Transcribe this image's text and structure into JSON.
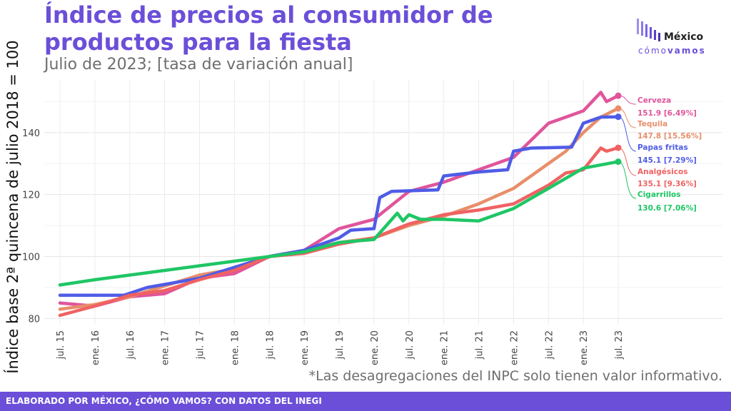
{
  "header": {
    "title": "Índice de precios al consumidor de productos para la fiesta",
    "subtitle": "Julio de 2023; [tasa de variación anual]"
  },
  "logo": {
    "word1": "México",
    "word2a": "cómo",
    "word2b": "vamos"
  },
  "footnote": "*Las desagregaciones del INPC solo tienen valor informativo.",
  "footer": "ELABORADO POR MÉXICO, ¿CÓMO VAMOS? CON DATOS DEL INEGI",
  "colors": {
    "brand": "#6b4fd8",
    "cerveza": "#e0559b",
    "tequila": "#e88e6a",
    "papas": "#4f5ce6",
    "analgesicos": "#f06262",
    "cigarrillos": "#1fc665"
  },
  "chart_data": {
    "type": "line",
    "title": "Índice de precios al consumidor de productos para la fiesta",
    "subtitle": "Julio de 2023; [tasa de variación anual]",
    "ylabel": "Índice base 2ª quincena de julio 2018 = 100",
    "xlabel": "",
    "ylim": [
      78,
      157
    ],
    "yticks": [
      80,
      100,
      120,
      140
    ],
    "x_tick_labels": [
      "jul. 15",
      "ene. 16",
      "jul. 16",
      "ene. 17",
      "jul. 17",
      "ene. 18",
      "jul. 18",
      "ene. 19",
      "jul. 19",
      "ene. 20",
      "jul. 20",
      "ene. 21",
      "jul. 21",
      "ene. 22",
      "jul. 22",
      "ene. 23",
      "jul. 23"
    ],
    "grid": true,
    "series": [
      {
        "name": "Cerveza",
        "key": "cerveza",
        "end_label": "151.9 [6.49%]",
        "points": [
          [
            "2015-07",
            85
          ],
          [
            "2016-01",
            84
          ],
          [
            "2016-07",
            87
          ],
          [
            "2017-01",
            88
          ],
          [
            "2017-07",
            93
          ],
          [
            "2018-01",
            94.5
          ],
          [
            "2018-07",
            100
          ],
          [
            "2019-01",
            102
          ],
          [
            "2019-07",
            109
          ],
          [
            "2020-01",
            112
          ],
          [
            "2020-07",
            121
          ],
          [
            "2021-01",
            124
          ],
          [
            "2021-07",
            128
          ],
          [
            "2022-01",
            132
          ],
          [
            "2022-07",
            143
          ],
          [
            "2022-10",
            145
          ],
          [
            "2023-01",
            147
          ],
          [
            "2023-04",
            153
          ],
          [
            "2023-05",
            150
          ],
          [
            "2023-07",
            151.9
          ]
        ]
      },
      {
        "name": "Tequila",
        "key": "tequila",
        "end_label": "147.8 [15.56%]",
        "points": [
          [
            "2015-07",
            83
          ],
          [
            "2016-01",
            84.5
          ],
          [
            "2016-07",
            87
          ],
          [
            "2017-01",
            90.5
          ],
          [
            "2017-07",
            94
          ],
          [
            "2018-01",
            96
          ],
          [
            "2018-07",
            100
          ],
          [
            "2019-01",
            102
          ],
          [
            "2019-07",
            104.5
          ],
          [
            "2020-01",
            106
          ],
          [
            "2020-07",
            110
          ],
          [
            "2021-01",
            113
          ],
          [
            "2021-07",
            117
          ],
          [
            "2022-01",
            122
          ],
          [
            "2022-07",
            130
          ],
          [
            "2022-10",
            134
          ],
          [
            "2023-01",
            140
          ],
          [
            "2023-04",
            145
          ],
          [
            "2023-07",
            147.8
          ]
        ]
      },
      {
        "name": "Papas fritas",
        "key": "papas",
        "end_label": "145.1 [7.29%]",
        "points": [
          [
            "2015-07",
            87.5
          ],
          [
            "2016-01",
            87.5
          ],
          [
            "2016-06",
            87.5
          ],
          [
            "2016-10",
            90
          ],
          [
            "2017-01",
            91
          ],
          [
            "2017-07",
            93
          ],
          [
            "2018-01",
            96.5
          ],
          [
            "2018-07",
            100
          ],
          [
            "2019-01",
            102
          ],
          [
            "2019-07",
            106
          ],
          [
            "2019-09",
            108.5
          ],
          [
            "2020-01",
            109
          ],
          [
            "2020-02",
            119
          ],
          [
            "2020-04",
            121
          ],
          [
            "2020-07",
            121.2
          ],
          [
            "2020-12",
            121.5
          ],
          [
            "2021-01",
            126
          ],
          [
            "2021-07",
            127.3
          ],
          [
            "2021-12",
            128
          ],
          [
            "2022-01",
            134
          ],
          [
            "2022-04",
            135
          ],
          [
            "2022-11",
            135.3
          ],
          [
            "2023-01",
            143
          ],
          [
            "2023-04",
            145
          ],
          [
            "2023-07",
            145.1
          ]
        ]
      },
      {
        "name": "Analgésicos",
        "key": "analgesicos",
        "end_label": "135.1 [9.36%]",
        "points": [
          [
            "2015-07",
            81
          ],
          [
            "2016-01",
            84
          ],
          [
            "2016-07",
            87.5
          ],
          [
            "2017-01",
            89
          ],
          [
            "2017-07",
            92.5
          ],
          [
            "2018-01",
            95.5
          ],
          [
            "2018-07",
            100
          ],
          [
            "2019-01",
            101
          ],
          [
            "2019-07",
            104
          ],
          [
            "2020-01",
            106
          ],
          [
            "2020-07",
            110.5
          ],
          [
            "2021-01",
            113.5
          ],
          [
            "2021-07",
            115
          ],
          [
            "2022-01",
            117
          ],
          [
            "2022-07",
            123
          ],
          [
            "2022-10",
            127
          ],
          [
            "2023-01",
            128
          ],
          [
            "2023-04",
            135
          ],
          [
            "2023-05",
            134
          ],
          [
            "2023-07",
            135.1
          ]
        ]
      },
      {
        "name": "Cigarrillos",
        "key": "cigarrillos",
        "end_label": "130.6 [7.06%]",
        "points": [
          [
            "2015-07",
            90.8
          ],
          [
            "2016-01",
            92.5
          ],
          [
            "2016-07",
            94
          ],
          [
            "2017-01",
            95.5
          ],
          [
            "2017-07",
            97
          ],
          [
            "2018-01",
            98.5
          ],
          [
            "2018-07",
            100
          ],
          [
            "2019-01",
            101.5
          ],
          [
            "2019-07",
            104.5
          ],
          [
            "2020-01",
            105.5
          ],
          [
            "2020-05",
            114
          ],
          [
            "2020-06",
            111.5
          ],
          [
            "2020-07",
            113.5
          ],
          [
            "2020-09",
            112
          ],
          [
            "2021-01",
            112
          ],
          [
            "2021-07",
            111.5
          ],
          [
            "2022-01",
            115.5
          ],
          [
            "2022-07",
            122
          ],
          [
            "2023-01",
            128.5
          ],
          [
            "2023-07",
            130.6
          ]
        ]
      }
    ]
  }
}
